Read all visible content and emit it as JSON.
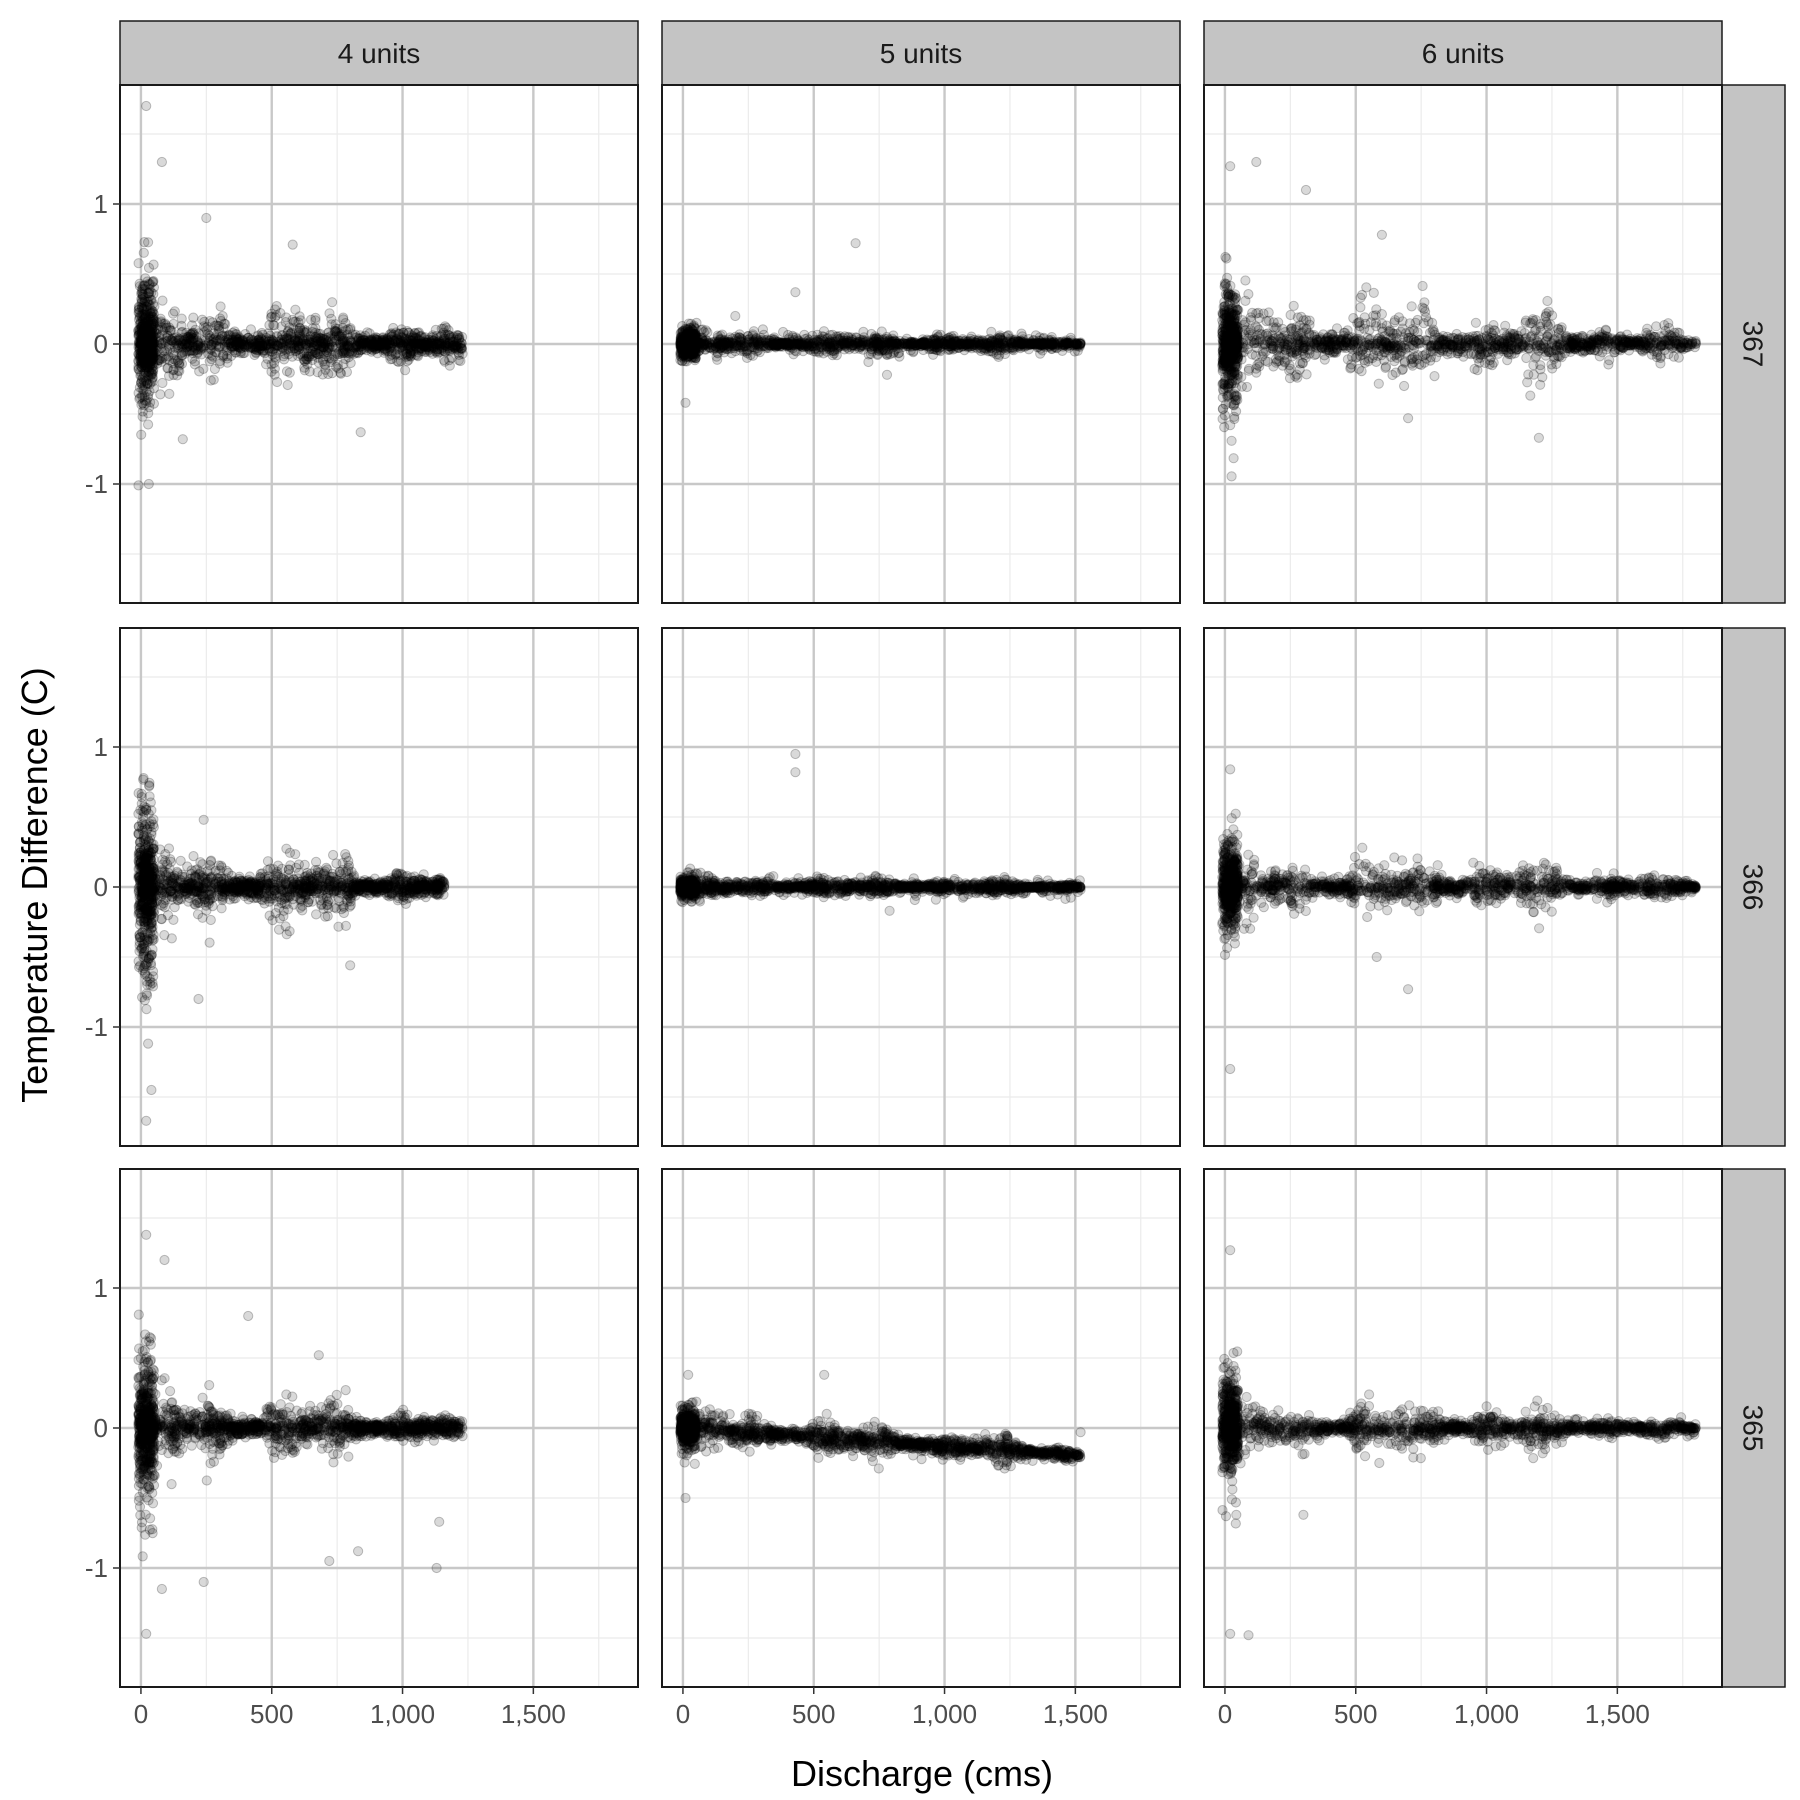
{
  "chart_data": {
    "type": "scatter",
    "xlabel": "Discharge (cms)",
    "ylabel": "Temperature Difference (C)",
    "xlim": [
      -80,
      1900
    ],
    "ylim": [
      -1.85,
      1.85
    ],
    "x_ticks": [
      0,
      500,
      1000,
      1500
    ],
    "x_tick_labels": [
      "0",
      "500",
      "1,000",
      "1,500"
    ],
    "y_ticks": [
      -1,
      0,
      1
    ],
    "y_tick_labels": [
      "-1",
      "0",
      "1"
    ],
    "grid": true,
    "columns": [
      "4 units",
      "5 units",
      "6 units"
    ],
    "rows": [
      "367",
      "366",
      "365"
    ],
    "point_color": "#000000",
    "point_alpha": 0.15,
    "panels": [
      {
        "col": "4 units",
        "row": "367",
        "x_max": 1230,
        "spread": 0.2,
        "early_spread": 0.7,
        "tail_spread": 0.15,
        "outliers": [
          [
            20,
            1.7
          ],
          [
            30,
            -1.0
          ],
          [
            160,
            -0.68
          ],
          [
            580,
            0.71
          ],
          [
            840,
            -0.63
          ],
          [
            250,
            0.9
          ],
          [
            80,
            1.3
          ]
        ]
      },
      {
        "col": "5 units",
        "row": "367",
        "x_max": 1520,
        "spread": 0.06,
        "early_spread": 0.15,
        "tail_spread": 0.05,
        "outliers": [
          [
            430,
            0.37
          ],
          [
            660,
            0.72
          ],
          [
            780,
            -0.22
          ],
          [
            200,
            0.2
          ],
          [
            10,
            -0.42
          ],
          [
            1520,
            0
          ]
        ]
      },
      {
        "col": "6 units",
        "row": "367",
        "x_max": 1800,
        "spread": 0.25,
        "early_spread": 0.6,
        "tail_spread": 0.02,
        "outliers": [
          [
            20,
            1.27
          ],
          [
            20,
            -0.58
          ],
          [
            120,
            1.3
          ],
          [
            310,
            1.1
          ],
          [
            600,
            0.78
          ],
          [
            1200,
            -0.67
          ],
          [
            700,
            -0.53
          ],
          [
            1800,
            0
          ]
        ]
      },
      {
        "col": "4 units",
        "row": "366",
        "x_max": 1160,
        "spread": 0.2,
        "early_spread": 0.9,
        "tail_spread": 0.1,
        "outliers": [
          [
            20,
            -1.67
          ],
          [
            40,
            -1.45
          ],
          [
            240,
            0.48
          ],
          [
            220,
            -0.8
          ],
          [
            800,
            -0.56
          ],
          [
            1160,
            0.02
          ]
        ]
      },
      {
        "col": "5 units",
        "row": "366",
        "x_max": 1520,
        "spread": 0.04,
        "early_spread": 0.1,
        "tail_spread": 0.05,
        "outliers": [
          [
            430,
            0.95
          ],
          [
            430,
            0.82
          ],
          [
            790,
            -0.17
          ],
          [
            1520,
            -0.02
          ]
        ]
      },
      {
        "col": "6 units",
        "row": "366",
        "x_max": 1800,
        "spread": 0.18,
        "early_spread": 0.5,
        "tail_spread": 0.02,
        "outliers": [
          [
            20,
            0.84
          ],
          [
            20,
            -1.3
          ],
          [
            700,
            -0.73
          ],
          [
            580,
            -0.5
          ],
          [
            1800,
            0
          ]
        ]
      },
      {
        "col": "4 units",
        "row": "365",
        "x_max": 1230,
        "spread": 0.18,
        "early_spread": 0.8,
        "tail_spread": 0.05,
        "outliers": [
          [
            20,
            -1.47
          ],
          [
            20,
            1.38
          ],
          [
            90,
            1.2
          ],
          [
            410,
            0.8
          ],
          [
            680,
            0.52
          ],
          [
            720,
            -0.95
          ],
          [
            830,
            -0.88
          ],
          [
            1130,
            -1.0
          ],
          [
            1140,
            -0.67
          ],
          [
            240,
            -1.1
          ],
          [
            80,
            -1.15
          ]
        ]
      },
      {
        "col": "5 units",
        "row": "365",
        "x_max": 1520,
        "spread": 0.08,
        "early_spread": 0.2,
        "tail_spread": 0.1,
        "slope": -0.00013,
        "outliers": [
          [
            20,
            0.38
          ],
          [
            540,
            0.38
          ],
          [
            10,
            -0.5
          ],
          [
            1520,
            -0.03
          ]
        ]
      },
      {
        "col": "6 units",
        "row": "365",
        "x_max": 1800,
        "spread": 0.15,
        "early_spread": 0.6,
        "tail_spread": 0.02,
        "outliers": [
          [
            20,
            1.27
          ],
          [
            20,
            -1.47
          ],
          [
            90,
            -1.48
          ],
          [
            300,
            -0.62
          ],
          [
            1800,
            0
          ]
        ]
      }
    ]
  }
}
